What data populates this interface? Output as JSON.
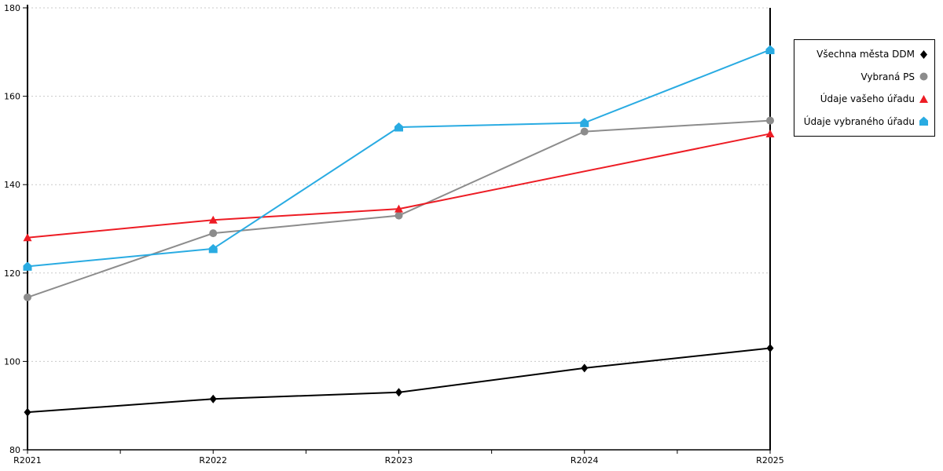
{
  "chart_data": {
    "type": "line",
    "x_categories": [
      "R2021",
      "R2022",
      "R2023",
      "R2024",
      "R2025"
    ],
    "y_ticks": [
      80,
      100,
      120,
      140,
      160,
      180
    ],
    "ylim": [
      80,
      180
    ],
    "grid": "horizontal-dotted",
    "legend_position": "outside-right",
    "series": [
      {
        "name": "Všechna města DDM",
        "marker": "diamond",
        "color": "#000000",
        "values": [
          88.5,
          91.5,
          93,
          98.5,
          103
        ]
      },
      {
        "name": "Vybraná PS",
        "marker": "circle",
        "color": "#8C8C8C",
        "values": [
          114.5,
          129,
          133,
          152,
          154.5
        ]
      },
      {
        "name": "Údaje vašeho úřadu",
        "marker": "triangle",
        "color": "#ED1C24",
        "values": [
          128,
          132,
          134.5,
          null,
          151.5
        ],
        "missing_marker_at": [
          "R2024"
        ]
      },
      {
        "name": "Údaje vybraného úřadu",
        "marker": "pentagon",
        "color": "#29ABE2",
        "values": [
          121.5,
          125.5,
          153,
          154,
          170.5
        ]
      }
    ]
  },
  "colors": {
    "background": "#FFFFFF",
    "axis": "#000000",
    "gridline": "#C9C9C9",
    "tick_label": "#000000"
  }
}
